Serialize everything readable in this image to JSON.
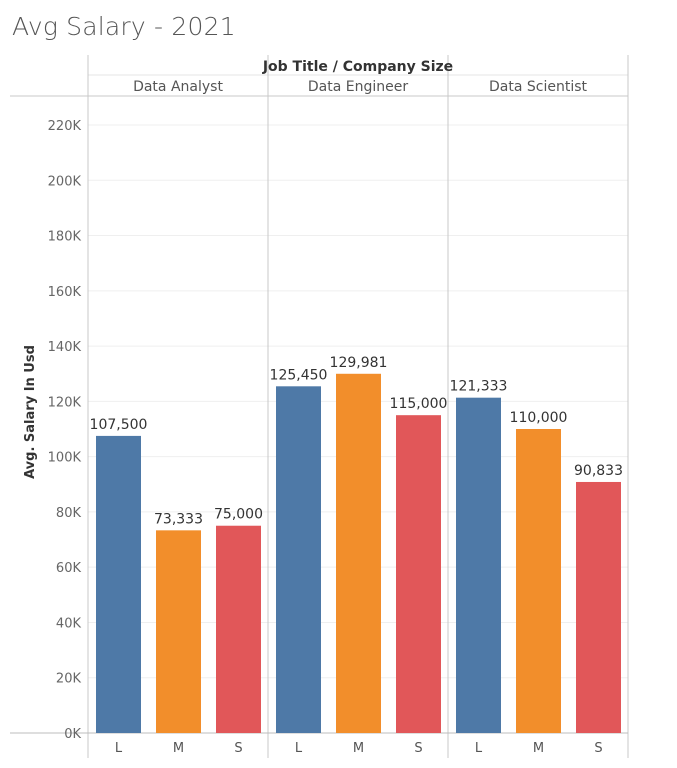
{
  "title": "Avg Salary - 2021",
  "chart_data": {
    "type": "bar",
    "title": "Avg Salary - 2021",
    "header": "Job Title  /  Company Size",
    "ylabel": "Avg. Salary In Usd",
    "xlabel": "",
    "ylim": [
      0,
      220000
    ],
    "yticks": [
      0,
      20000,
      40000,
      60000,
      80000,
      100000,
      120000,
      140000,
      160000,
      180000,
      200000,
      220000
    ],
    "ytick_labels": [
      "0K",
      "20K",
      "40K",
      "60K",
      "80K",
      "100K",
      "120K",
      "140K",
      "160K",
      "180K",
      "200K",
      "220K"
    ],
    "groups": [
      {
        "name": "Data Analyst",
        "bars": [
          {
            "category": "L",
            "value": 107500,
            "label": "107,500"
          },
          {
            "category": "M",
            "value": 73333,
            "label": "73,333"
          },
          {
            "category": "S",
            "value": 75000,
            "label": "75,000"
          }
        ]
      },
      {
        "name": "Data Engineer",
        "bars": [
          {
            "category": "L",
            "value": 125450,
            "label": "125,450"
          },
          {
            "category": "M",
            "value": 129981,
            "label": "129,981"
          },
          {
            "category": "S",
            "value": 115000,
            "label": "115,000"
          }
        ]
      },
      {
        "name": "Data Scientist",
        "bars": [
          {
            "category": "L",
            "value": 121333,
            "label": "121,333"
          },
          {
            "category": "M",
            "value": 110000,
            "label": "110,000"
          },
          {
            "category": "S",
            "value": 90833,
            "label": "90,833"
          }
        ]
      }
    ],
    "colors": {
      "L": "#4e79a7",
      "M": "#f28e2b",
      "S": "#e15759"
    },
    "grid": true,
    "legend": "none"
  }
}
